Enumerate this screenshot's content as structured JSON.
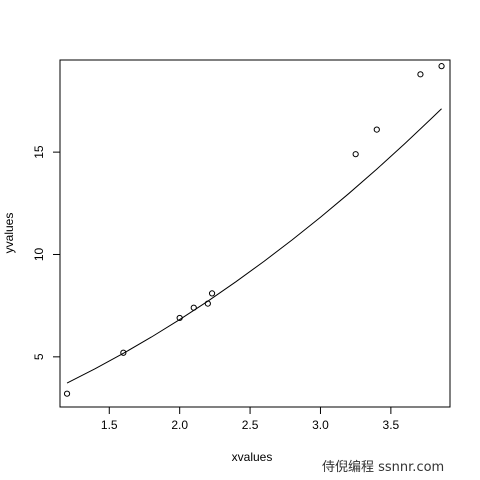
{
  "chart_data": {
    "type": "scatter",
    "title": "",
    "xlabel": "xvalues",
    "ylabel": "yvalues",
    "xlim": [
      1.15,
      3.92
    ],
    "ylim": [
      2.55,
      19.5
    ],
    "xticks": [
      "1.5",
      "2.0",
      "2.5",
      "3.0",
      "3.5"
    ],
    "yticks": [
      "5",
      "10",
      "15"
    ],
    "points": [
      {
        "x": 1.2,
        "y": 3.2
      },
      {
        "x": 1.6,
        "y": 5.2
      },
      {
        "x": 2.0,
        "y": 6.9
      },
      {
        "x": 2.1,
        "y": 7.4
      },
      {
        "x": 2.2,
        "y": 7.6
      },
      {
        "x": 2.23,
        "y": 8.1
      },
      {
        "x": 3.25,
        "y": 14.9
      },
      {
        "x": 3.4,
        "y": 16.1
      },
      {
        "x": 3.71,
        "y": 18.8
      },
      {
        "x": 3.86,
        "y": 19.2
      }
    ],
    "fit_curve": {
      "x": [
        1.2,
        1.4,
        1.6,
        1.8,
        2.0,
        2.2,
        2.4,
        2.6,
        2.8,
        3.0,
        3.2,
        3.4,
        3.6,
        3.8,
        3.86
      ],
      "y": [
        3.72,
        4.42,
        5.17,
        5.97,
        6.82,
        7.72,
        8.67,
        9.67,
        10.72,
        11.82,
        12.97,
        14.17,
        15.42,
        16.72,
        17.12
      ]
    },
    "grid": false,
    "legend": "none"
  },
  "watermark": "侍倪编程 ssnnr.com"
}
